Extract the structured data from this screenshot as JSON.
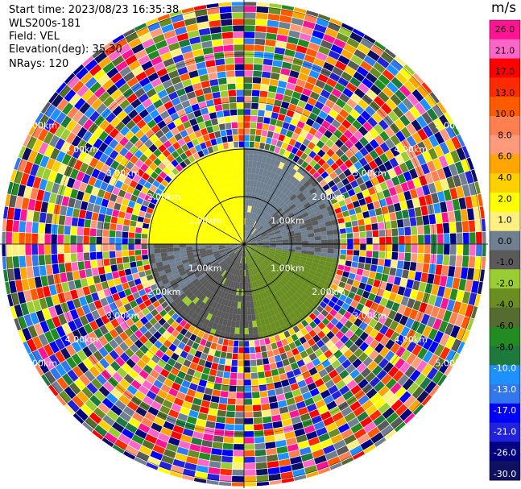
{
  "header": {
    "start_time": "Start time: 2023/08/23 16:35:38",
    "instrument": "WLS200s-181",
    "field": "Field: VEL",
    "elevation": "Elevation(deg): 35.30",
    "nrays": "NRays: 120"
  },
  "colorbar": {
    "title": "m/s",
    "colors": [
      "#ff1493",
      "#ff66c8",
      "#ff0000",
      "#ff2a00",
      "#ff5a00",
      "#ff7f50",
      "#ff9a7a",
      "#ffa500",
      "#ffd000",
      "#ffff00",
      "#fff080",
      "#708090",
      "#5a5a5a",
      "#9acd32",
      "#6b8e23",
      "#556b2f",
      "#228b22",
      "#1e7a3c",
      "#1e90ff",
      "#3377ee",
      "#0000ff",
      "#2222dd",
      "#000080",
      "#101060"
    ],
    "ticks": [
      "26.0",
      "21.0",
      "17.0",
      "13.0",
      "10.0",
      "8.0",
      "6.0",
      "4.0",
      "2.0",
      "1.0",
      "0.0",
      "-1.0",
      "-2.0",
      "-4.0",
      "-6.0",
      "-8.0",
      "-10.0",
      "-13.0",
      "-17.0",
      "-21.0",
      "-26.0",
      "-30.0"
    ]
  },
  "chart_data": {
    "type": "heatmap",
    "projection": "polar PPI",
    "field": "VEL",
    "units": "m/s",
    "vmin": -30.0,
    "vmax": 30.0,
    "n_rays": 120,
    "range_rings_km": [
      1.0,
      2.0,
      3.0,
      4.0,
      5.0
    ],
    "ring_labels": [
      "1.00km",
      "2.00km",
      "3.00km",
      "4.00km",
      "5.00km"
    ],
    "max_range_km": 5.1,
    "valid_range_km": 2.1,
    "sectors": [
      {
        "from_deg": 270,
        "to_deg": 360,
        "velocity": 6.0
      },
      {
        "from_deg": 0,
        "to_deg": 45,
        "velocity": 2.0
      },
      {
        "from_deg": 45,
        "to_deg": 100,
        "velocity": 0.0
      },
      {
        "from_deg": 100,
        "to_deg": 170,
        "velocity": -6.0
      },
      {
        "from_deg": 170,
        "to_deg": 230,
        "velocity": -2.0
      },
      {
        "from_deg": 230,
        "to_deg": 270,
        "velocity": 0.0
      }
    ]
  }
}
